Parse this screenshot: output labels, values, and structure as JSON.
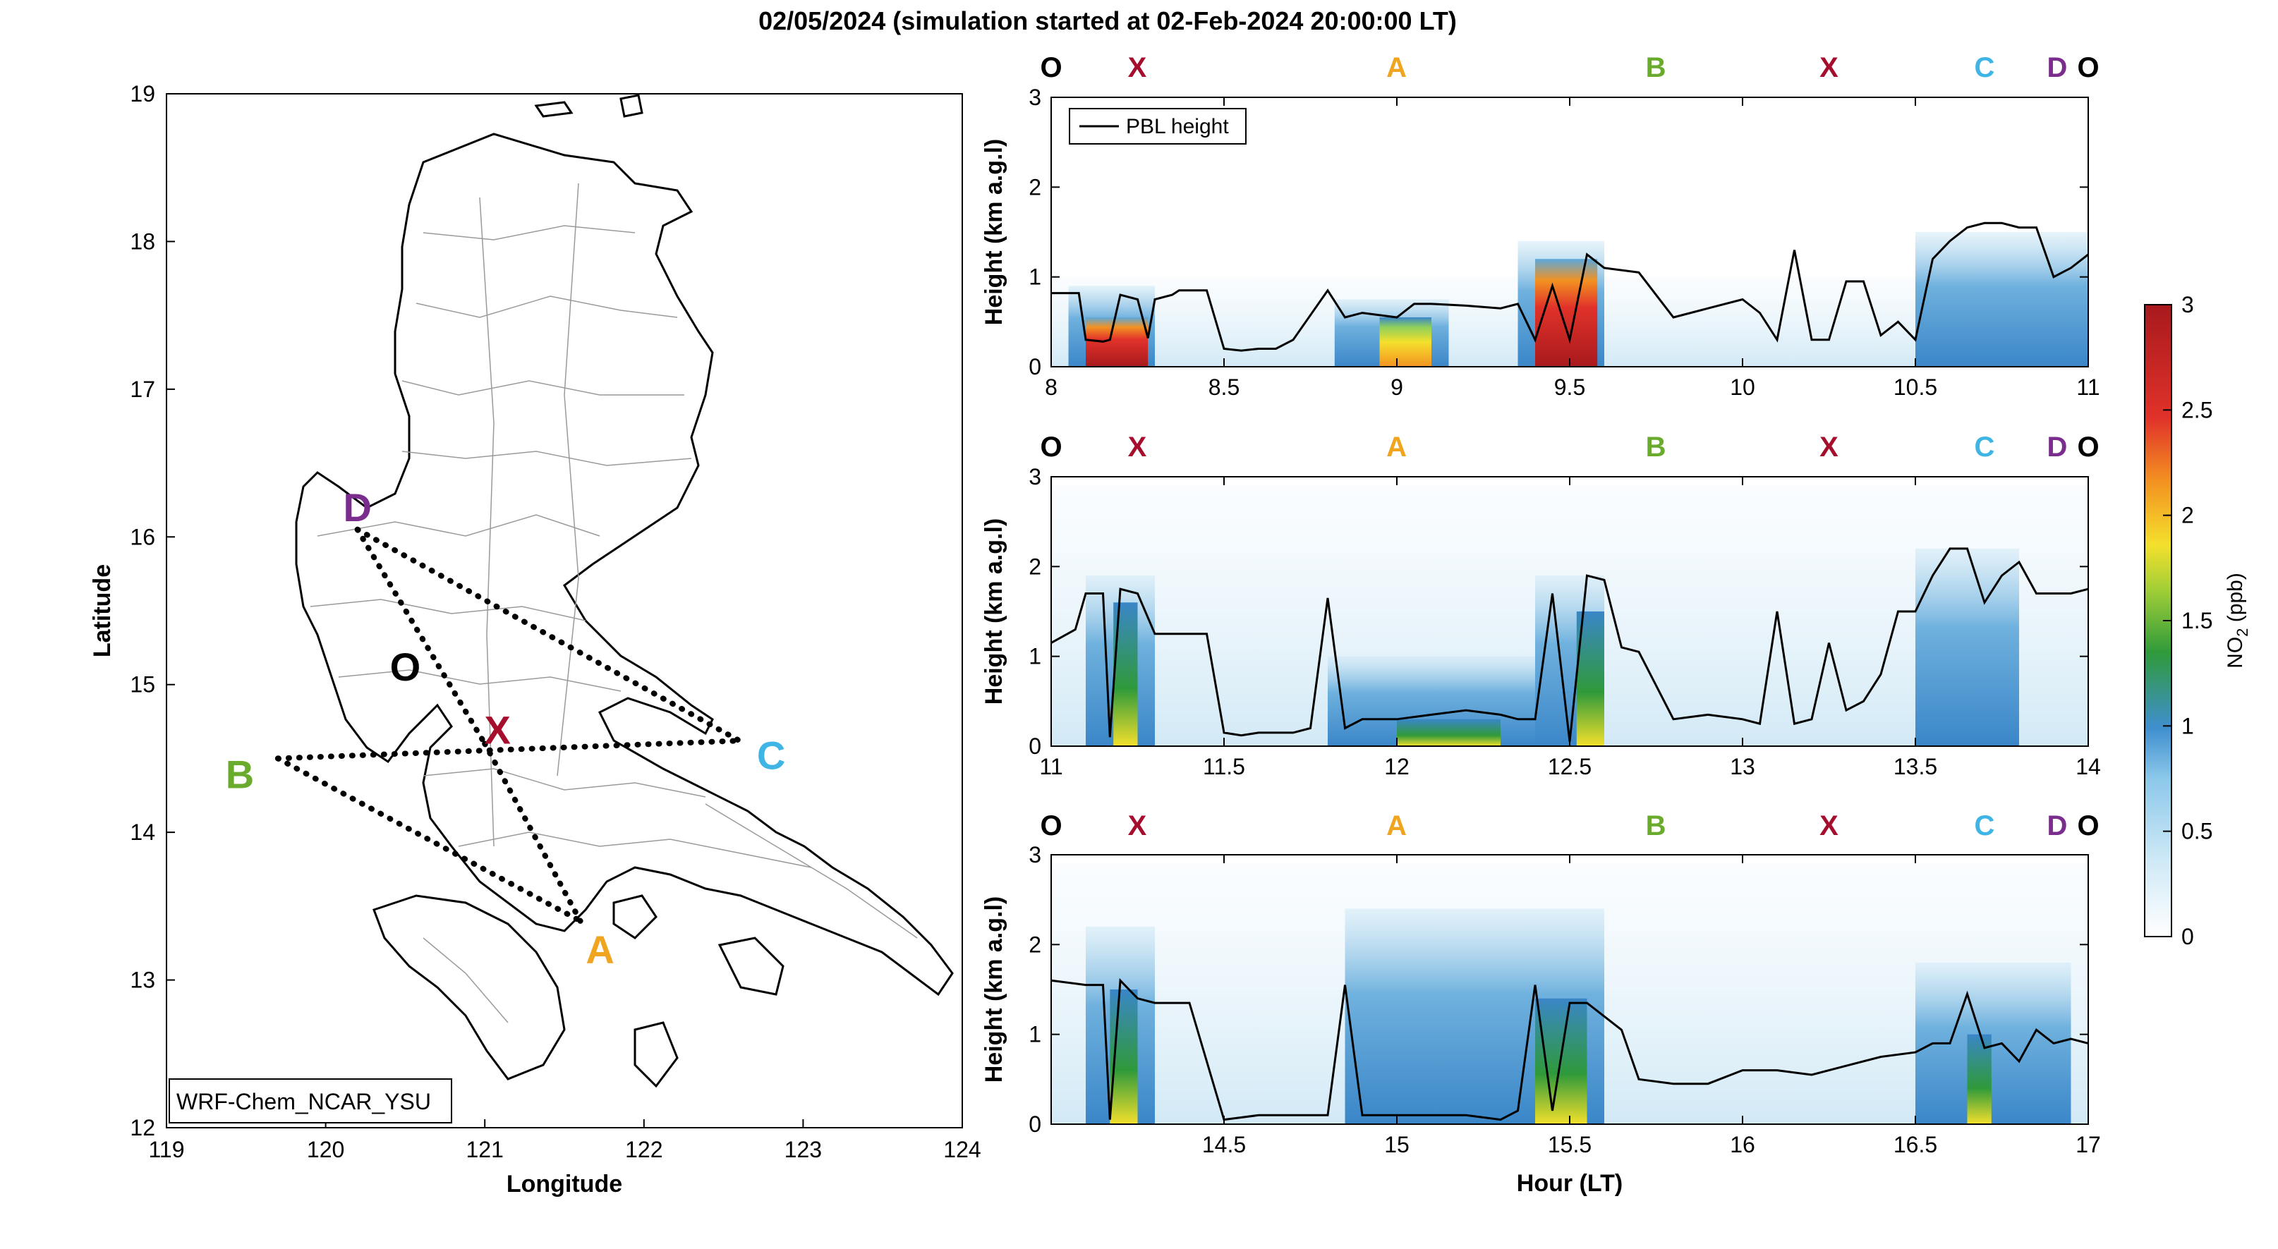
{
  "title": "02/05/2024 (simulation started at 02-Feb-2024 20:00:00 LT)",
  "map": {
    "xlabel": "Longitude",
    "ylabel": "Latitude",
    "xlim": [
      119,
      124
    ],
    "ylim": [
      12,
      19
    ],
    "xticks": [
      "119",
      "120",
      "121",
      "122",
      "123",
      "124"
    ],
    "yticks": [
      "12",
      "13",
      "14",
      "15",
      "16",
      "17",
      "18",
      "19"
    ],
    "model_label": "WRF-Chem_NCAR_YSU",
    "points": [
      {
        "name": "D",
        "lon": 120.2,
        "lat": 16.05,
        "color": "#7B2D8E"
      },
      {
        "name": "O",
        "lon": 120.5,
        "lat": 15.17,
        "color": "#000000"
      },
      {
        "name": "X",
        "lon": 121.0,
        "lat": 14.6,
        "color": "#A50F2D"
      },
      {
        "name": "B",
        "lon": 119.7,
        "lat": 14.5,
        "color": "#6AAB2E"
      },
      {
        "name": "C",
        "lon": 122.6,
        "lat": 14.62,
        "color": "#3EB5E5"
      },
      {
        "name": "A",
        "lon": 121.6,
        "lat": 13.4,
        "color": "#F0A521"
      }
    ]
  },
  "route_labels": [
    {
      "name": "O",
      "color": "#000000"
    },
    {
      "name": "X",
      "color": "#A50F2D"
    },
    {
      "name": "A",
      "color": "#F0A521"
    },
    {
      "name": "B",
      "color": "#6AAB2E"
    },
    {
      "name": "X",
      "color": "#A50F2D"
    },
    {
      "name": "C",
      "color": "#3EB5E5"
    },
    {
      "name": "D",
      "color": "#7B2D8E"
    },
    {
      "name": "O",
      "color": "#000000"
    }
  ],
  "panels": {
    "ylabel": "Height (km a.g.l)",
    "xlabel": "Hour (LT)",
    "legend": "PBL height",
    "yticks": [
      "0",
      "1",
      "2",
      "3"
    ],
    "p1_xticks": [
      "8",
      "8.5",
      "9",
      "9.5",
      "10",
      "10.5",
      "11"
    ],
    "p2_xticks": [
      "11",
      "11.5",
      "12",
      "12.5",
      "13",
      "13.5",
      "14"
    ],
    "p3_xticks": [
      "14.5",
      "15",
      "15.5",
      "16",
      "16.5",
      "17"
    ]
  },
  "colorbar": {
    "label": "NO2 (ppb)",
    "ticks": [
      "0",
      "0.5",
      "1",
      "1.5",
      "2",
      "2.5",
      "3"
    ],
    "colors": [
      "#ffffff",
      "#c6e6f5",
      "#8cc8ea",
      "#4a95d0",
      "#3978bb",
      "#2f9a3a",
      "#f4e02c",
      "#f39221",
      "#e1322a",
      "#a8191d"
    ]
  },
  "chart_data": [
    {
      "type": "line",
      "title": "",
      "xlabel": "",
      "ylabel": "Height (km a.g.l)",
      "xlim": [
        8,
        11
      ],
      "ylim": [
        0,
        3
      ],
      "series": [
        {
          "name": "PBL height",
          "x": [
            8,
            8.08,
            8.1,
            8.15,
            8.17,
            8.2,
            8.25,
            8.28,
            8.3,
            8.35,
            8.37,
            8.45,
            8.5,
            8.55,
            8.6,
            8.65,
            8.7,
            8.8,
            8.85,
            8.9,
            9.0,
            9.05,
            9.1,
            9.2,
            9.3,
            9.35,
            9.4,
            9.45,
            9.5,
            9.55,
            9.6,
            9.7,
            9.8,
            9.9,
            10.0,
            10.05,
            10.1,
            10.15,
            10.2,
            10.25,
            10.3,
            10.35,
            10.4,
            10.45,
            10.5,
            10.55,
            10.6,
            10.65,
            10.7,
            10.75,
            10.8,
            10.85,
            10.9,
            10.95,
            11.0
          ],
          "values": [
            0.82,
            0.82,
            0.3,
            0.28,
            0.3,
            0.8,
            0.75,
            0.32,
            0.75,
            0.8,
            0.85,
            0.85,
            0.2,
            0.18,
            0.2,
            0.2,
            0.3,
            0.85,
            0.55,
            0.6,
            0.55,
            0.7,
            0.7,
            0.68,
            0.65,
            0.7,
            0.3,
            0.9,
            0.3,
            1.25,
            1.1,
            1.05,
            0.55,
            0.65,
            0.75,
            0.6,
            0.3,
            1.3,
            0.3,
            0.3,
            0.95,
            0.95,
            0.35,
            0.5,
            0.3,
            1.2,
            1.4,
            1.55,
            1.6,
            1.6,
            1.55,
            1.55,
            1.0,
            1.1,
            1.25
          ]
        }
      ]
    },
    {
      "type": "line",
      "title": "",
      "xlabel": "",
      "ylabel": "Height (km a.g.l)",
      "xlim": [
        11,
        14
      ],
      "ylim": [
        0,
        3
      ],
      "series": [
        {
          "name": "PBL height",
          "x": [
            11.0,
            11.07,
            11.1,
            11.15,
            11.17,
            11.2,
            11.25,
            11.3,
            11.35,
            11.45,
            11.5,
            11.55,
            11.6,
            11.7,
            11.75,
            11.8,
            11.85,
            11.9,
            12.0,
            12.1,
            12.2,
            12.3,
            12.35,
            12.4,
            12.45,
            12.5,
            12.55,
            12.6,
            12.65,
            12.7,
            12.8,
            12.9,
            13.0,
            13.05,
            13.1,
            13.15,
            13.2,
            13.25,
            13.3,
            13.35,
            13.4,
            13.45,
            13.5,
            13.55,
            13.6,
            13.65,
            13.7,
            13.75,
            13.8,
            13.85,
            13.9,
            13.95,
            14.0
          ],
          "values": [
            1.15,
            1.3,
            1.7,
            1.7,
            0.1,
            1.75,
            1.7,
            1.25,
            1.25,
            1.25,
            0.15,
            0.12,
            0.15,
            0.15,
            0.2,
            1.65,
            0.2,
            0.3,
            0.3,
            0.35,
            0.4,
            0.35,
            0.3,
            0.3,
            1.7,
            0.05,
            1.9,
            1.85,
            1.1,
            1.05,
            0.3,
            0.35,
            0.3,
            0.25,
            1.5,
            0.25,
            0.3,
            1.15,
            0.4,
            0.5,
            0.8,
            1.5,
            1.5,
            1.9,
            2.2,
            2.2,
            1.6,
            1.9,
            2.05,
            1.7,
            1.7,
            1.7,
            1.75
          ]
        }
      ]
    },
    {
      "type": "line",
      "title": "",
      "xlabel": "Hour (LT)",
      "ylabel": "Height (km a.g.l)",
      "xlim": [
        14,
        17
      ],
      "ylim": [
        0,
        3
      ],
      "series": [
        {
          "name": "PBL height",
          "x": [
            14.0,
            14.1,
            14.15,
            14.17,
            14.2,
            14.25,
            14.3,
            14.4,
            14.5,
            14.6,
            14.7,
            14.8,
            14.85,
            14.9,
            15.0,
            15.1,
            15.2,
            15.3,
            15.35,
            15.4,
            15.45,
            15.5,
            15.55,
            15.6,
            15.65,
            15.7,
            15.8,
            15.9,
            16.0,
            16.1,
            16.2,
            16.3,
            16.4,
            16.5,
            16.55,
            16.6,
            16.65,
            16.7,
            16.75,
            16.8,
            16.85,
            16.9,
            16.95,
            17.0
          ],
          "values": [
            1.6,
            1.55,
            1.55,
            0.05,
            1.6,
            1.4,
            1.35,
            1.35,
            0.05,
            0.1,
            0.1,
            0.1,
            1.55,
            0.1,
            0.1,
            0.1,
            0.1,
            0.05,
            0.15,
            1.55,
            0.15,
            1.35,
            1.35,
            1.2,
            1.05,
            0.5,
            0.45,
            0.45,
            0.6,
            0.6,
            0.55,
            0.65,
            0.75,
            0.8,
            0.9,
            0.9,
            1.45,
            0.85,
            0.9,
            0.7,
            1.05,
            0.9,
            0.95,
            0.9
          ]
        }
      ]
    }
  ]
}
